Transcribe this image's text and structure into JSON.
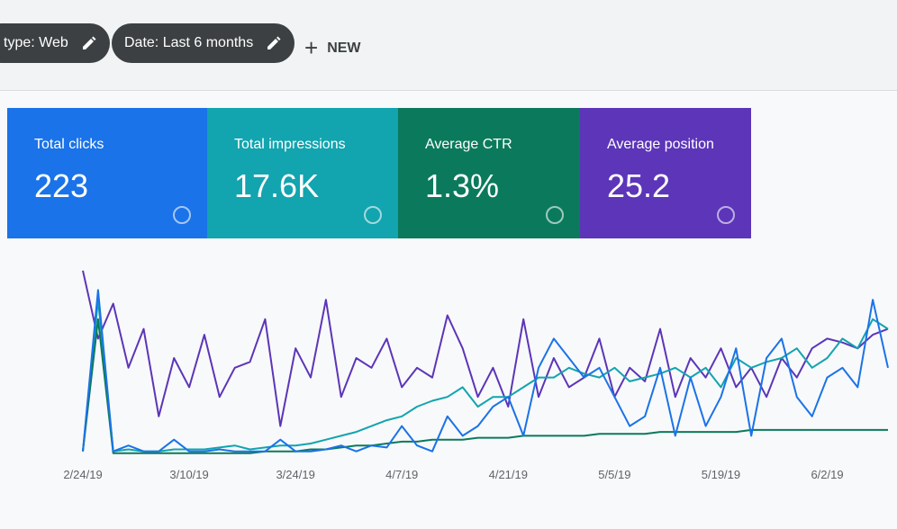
{
  "filters": [
    {
      "label": "type: Web"
    },
    {
      "label": "Date: Last 6 months"
    }
  ],
  "new_button": "NEW",
  "metrics": [
    {
      "label": "Total clicks",
      "value": "223",
      "color": "#1a73e8"
    },
    {
      "label": "Total impressions",
      "value": "17.6K",
      "color": "#12a4af"
    },
    {
      "label": "Average CTR",
      "value": "1.3%",
      "color": "#0b7a5c"
    },
    {
      "label": "Average position",
      "value": "25.2",
      "color": "#5c35b8"
    }
  ],
  "chart_data": {
    "type": "line",
    "categories": [
      "2/24/19",
      null,
      null,
      null,
      null,
      null,
      null,
      "3/10/19",
      null,
      null,
      null,
      null,
      null,
      null,
      "3/24/19",
      null,
      null,
      null,
      null,
      null,
      null,
      "4/7/19",
      null,
      null,
      null,
      null,
      null,
      null,
      "4/21/19",
      null,
      null,
      null,
      null,
      null,
      null,
      "5/5/19",
      null,
      null,
      null,
      null,
      null,
      null,
      "5/19/19",
      null,
      null,
      null,
      null,
      null,
      null,
      "6/2/19",
      null,
      null,
      null,
      null
    ],
    "ylim": [
      0,
      100
    ],
    "series": [
      {
        "color": "#5c35b8",
        "values": [
          95,
          60,
          78,
          45,
          65,
          20,
          50,
          35,
          62,
          30,
          45,
          48,
          70,
          15,
          55,
          40,
          80,
          30,
          50,
          45,
          60,
          35,
          45,
          40,
          72,
          55,
          30,
          45,
          25,
          70,
          30,
          50,
          35,
          40,
          60,
          30,
          45,
          38,
          65,
          30,
          50,
          40,
          55,
          35,
          45,
          30,
          50,
          40,
          55,
          60,
          58,
          55,
          62,
          65
        ]
      },
      {
        "color": "#12a4af",
        "values": [
          2,
          80,
          2,
          3,
          2,
          2,
          3,
          3,
          3,
          4,
          5,
          3,
          4,
          5,
          5,
          6,
          8,
          10,
          12,
          15,
          18,
          20,
          25,
          28,
          30,
          35,
          25,
          30,
          30,
          35,
          40,
          40,
          45,
          42,
          40,
          45,
          38,
          40,
          42,
          45,
          40,
          45,
          35,
          50,
          45,
          48,
          50,
          55,
          45,
          50,
          60,
          55,
          70,
          65
        ]
      },
      {
        "color": "#0b7a5c",
        "values": [
          2,
          70,
          1,
          1,
          1,
          1,
          1,
          1,
          1,
          1,
          1,
          1,
          2,
          2,
          2,
          3,
          3,
          4,
          5,
          5,
          6,
          7,
          7,
          8,
          8,
          8,
          9,
          9,
          9,
          10,
          10,
          10,
          10,
          10,
          11,
          11,
          11,
          11,
          12,
          12,
          12,
          12,
          12,
          12,
          13,
          13,
          13,
          13,
          13,
          13,
          13,
          13,
          13,
          13
        ]
      },
      {
        "color": "#1a73e8",
        "values": [
          2,
          85,
          2,
          5,
          2,
          2,
          8,
          2,
          2,
          3,
          2,
          2,
          2,
          8,
          2,
          2,
          3,
          5,
          2,
          5,
          4,
          15,
          5,
          2,
          20,
          10,
          15,
          25,
          30,
          10,
          45,
          60,
          50,
          40,
          45,
          30,
          15,
          20,
          45,
          10,
          40,
          15,
          30,
          55,
          10,
          50,
          60,
          30,
          20,
          40,
          45,
          35,
          80,
          45
        ]
      }
    ]
  }
}
